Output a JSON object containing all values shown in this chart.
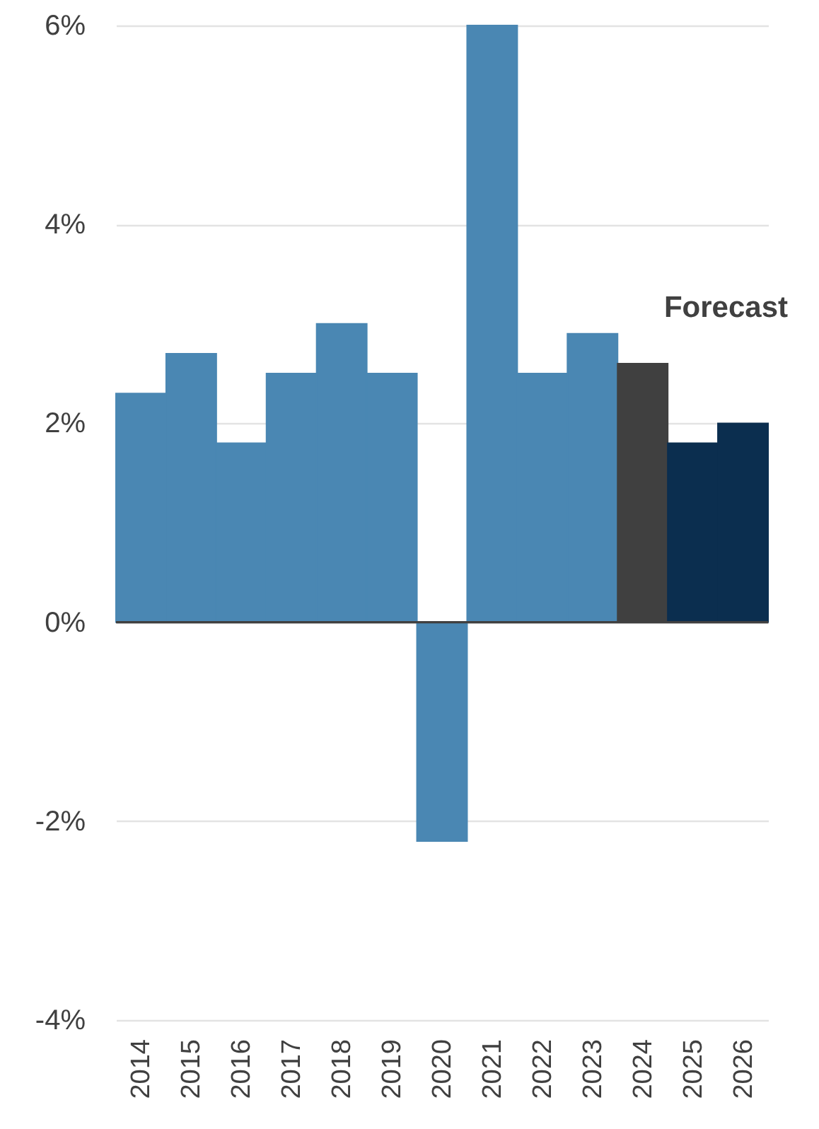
{
  "chart_data": {
    "type": "bar",
    "categories": [
      "2014",
      "2015",
      "2016",
      "2017",
      "2018",
      "2019",
      "2020",
      "2021",
      "2022",
      "2023",
      "2024",
      "2025",
      "2026"
    ],
    "values": [
      2.3,
      2.7,
      1.8,
      2.5,
      3.0,
      2.5,
      -2.2,
      6.0,
      2.5,
      2.9,
      2.6,
      1.8,
      2.0
    ],
    "colors": [
      "#4a87b3",
      "#4a87b3",
      "#4a87b3",
      "#4a87b3",
      "#4a87b3",
      "#4a87b3",
      "#4a87b3",
      "#4a87b3",
      "#4a87b3",
      "#4a87b3",
      "#404040",
      "#0b2e4f",
      "#0b2e4f"
    ],
    "ylim": [
      -4,
      6
    ],
    "yticks": [
      {
        "value": -4,
        "label": "-4%"
      },
      {
        "value": -2,
        "label": "-2%"
      },
      {
        "value": 0,
        "label": "0%"
      },
      {
        "value": 2,
        "label": "2%"
      },
      {
        "value": 4,
        "label": "4%"
      },
      {
        "value": 6,
        "label": "6%"
      }
    ],
    "grid": "y",
    "ref_lines": [
      {
        "axis": "y",
        "value": 0,
        "color": "#404040"
      }
    ],
    "annotations": [
      "Forecast"
    ]
  }
}
